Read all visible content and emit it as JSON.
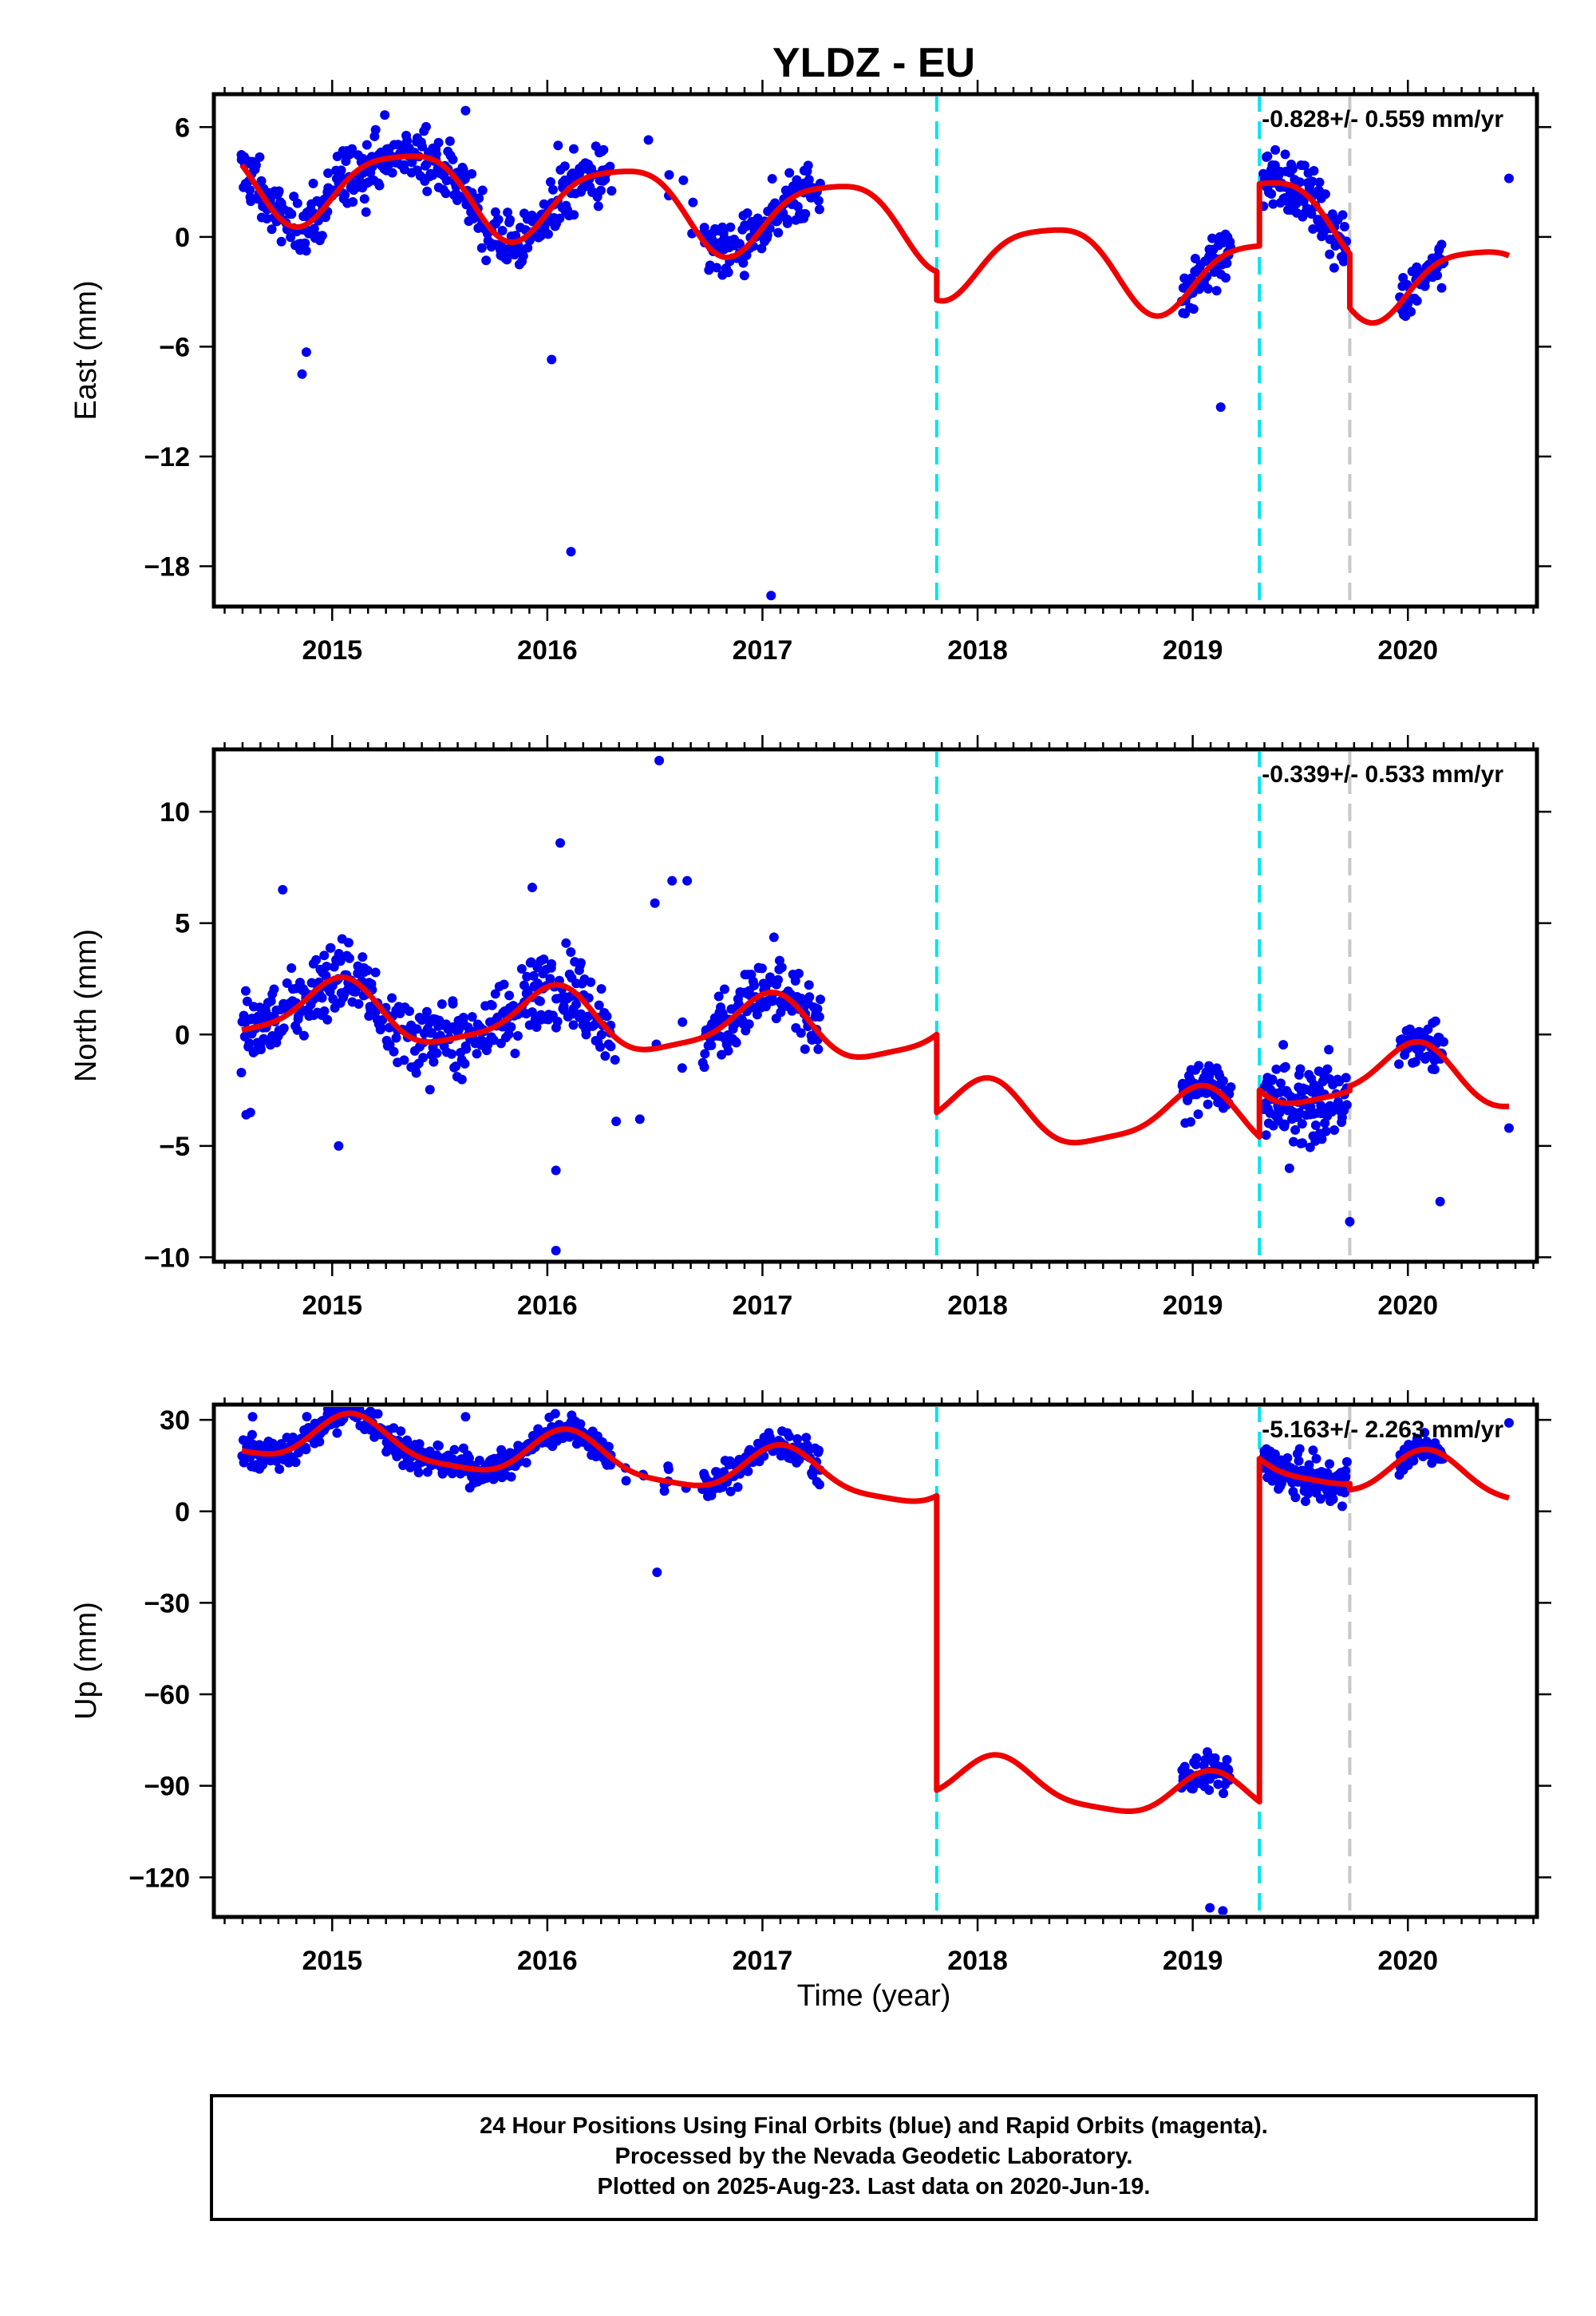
{
  "title": "YLDZ - EU",
  "xlabel": "Time (year)",
  "footer": {
    "line1": "24 Hour Positions Using Final Orbits (blue) and Rapid Orbits (magenta).",
    "line2": "Processed by the Nevada Geodetic Laboratory.",
    "line3": "Plotted on 2025-Aug-23. Last data on 2020-Jun-19."
  },
  "colors": {
    "final_orbits": "#0000ee",
    "rapid_orbits": "#ee00ee",
    "model_fit": "#ee0000",
    "antenna_change": "#00e5ee",
    "other_event": "#c8c8c8"
  },
  "chart_data": [
    {
      "type": "scatter",
      "panel": "east",
      "ylabel": "East (mm)",
      "rate_text": "-0.828+/- 0.559 mm/yr",
      "xlim": [
        2014.45,
        2020.6
      ],
      "ylim": [
        -20.2,
        7.8
      ],
      "xticks": [
        2015,
        2016,
        2017,
        2018,
        2019,
        2020
      ],
      "yticks": [
        6,
        0,
        -6,
        -12,
        -18
      ],
      "ytick_labels": [
        "6",
        "0",
        "−6",
        "−12",
        "−18"
      ],
      "grid": false,
      "legend": "none",
      "vlines": [
        {
          "x": 2017.81,
          "color": "cyan"
        },
        {
          "x": 2019.31,
          "color": "cyan"
        },
        {
          "x": 2019.73,
          "color": "gray"
        }
      ],
      "model": {
        "segments": [
          {
            "x0": 2014.58,
            "x1": 2017.81,
            "offset": 1.55
          },
          {
            "x0": 2017.81,
            "x1": 2019.31,
            "offset": 0.0
          },
          {
            "x0": 2019.31,
            "x1": 2019.73,
            "offset": 3.4
          },
          {
            "x0": 2019.73,
            "x1": 2020.47,
            "offset": 0.45
          }
        ],
        "base": -0.22,
        "rate": -0.828,
        "annual_sin": 1.8,
        "annual_cos": -1.15,
        "semi_sin": 0.35,
        "semi_cos": 0.3
      },
      "points_by_segment": [
        {
          "x0": 2014.58,
          "x1": 2017.27,
          "noise": 1.5,
          "gaps": [
            [
              2016.3,
              2016.72
            ]
          ],
          "step": 0.006
        },
        {
          "x0": 2018.95,
          "x1": 2019.18,
          "noise": 1.3,
          "step": 0.005
        },
        {
          "x0": 2019.33,
          "x1": 2019.72,
          "noise": 1.5,
          "step": 0.005
        },
        {
          "x0": 2019.96,
          "x1": 2020.17,
          "noise": 1.1,
          "step": 0.005
        }
      ],
      "outliers": [
        [
          2014.86,
          -7.5
        ],
        [
          2014.88,
          -6.3
        ],
        [
          2016.02,
          -6.7
        ],
        [
          2016.11,
          -17.2
        ],
        [
          2017.04,
          -19.6
        ],
        [
          2020.47,
          3.2
        ],
        [
          2015.05,
          4.7
        ],
        [
          2015.62,
          6.9
        ],
        [
          2016.05,
          5.0
        ],
        [
          2016.47,
          5.3
        ],
        [
          2019.36,
          3.5
        ],
        [
          2019.52,
          3.9
        ],
        [
          2019.13,
          -9.3
        ]
      ]
    },
    {
      "type": "scatter",
      "panel": "north",
      "ylabel": "North (mm)",
      "rate_text": "-0.339+/- 0.533 mm/yr",
      "xlim": [
        2014.45,
        2020.6
      ],
      "ylim": [
        -10.2,
        12.8
      ],
      "xticks": [
        2015,
        2016,
        2017,
        2018,
        2019,
        2020
      ],
      "yticks": [
        10,
        5,
        0,
        -5,
        -10
      ],
      "ytick_labels": [
        "10",
        "5",
        "0",
        "−5",
        "−10"
      ],
      "grid": false,
      "legend": "none",
      "vlines": [
        {
          "x": 2017.81,
          "color": "cyan"
        },
        {
          "x": 2019.31,
          "color": "cyan"
        },
        {
          "x": 2019.73,
          "color": "gray"
        }
      ],
      "model": {
        "segments": [
          {
            "x0": 2014.58,
            "x1": 2017.81,
            "offset": 0.0
          },
          {
            "x0": 2017.81,
            "x1": 2019.31,
            "offset": -3.5
          },
          {
            "x0": 2019.31,
            "x1": 2019.73,
            "offset": -1.4
          },
          {
            "x0": 2019.73,
            "x1": 2020.47,
            "offset": -1.2
          }
        ],
        "base": 0.3,
        "rate": -0.339,
        "annual_sin": 0.2,
        "annual_cos": 1.3,
        "semi_sin": 0.25,
        "semi_cos": 0.2
      },
      "points_by_segment": [
        {
          "x0": 2014.58,
          "x1": 2017.27,
          "noise": 1.5,
          "gaps": [
            [
              2016.3,
              2016.72
            ]
          ],
          "step": 0.006
        },
        {
          "x0": 2018.95,
          "x1": 2019.18,
          "noise": 1.1,
          "step": 0.005
        },
        {
          "x0": 2019.33,
          "x1": 2019.72,
          "noise": 1.7,
          "step": 0.005
        },
        {
          "x0": 2019.96,
          "x1": 2020.17,
          "noise": 1.1,
          "step": 0.005
        }
      ],
      "outliers": [
        [
          2014.6,
          -3.6
        ],
        [
          2014.62,
          -3.5
        ],
        [
          2015.03,
          -5.0
        ],
        [
          2016.04,
          -6.1
        ],
        [
          2016.04,
          -9.7
        ],
        [
          2016.06,
          8.6
        ],
        [
          2016.52,
          12.3
        ],
        [
          2016.5,
          5.9
        ],
        [
          2016.58,
          6.9
        ],
        [
          2016.65,
          6.9
        ],
        [
          2014.77,
          6.5
        ],
        [
          2015.93,
          6.6
        ],
        [
          2016.32,
          -3.9
        ],
        [
          2016.43,
          -3.8
        ],
        [
          2019.73,
          -8.4
        ],
        [
          2020.47,
          -4.2
        ],
        [
          2020.15,
          -7.5
        ]
      ]
    },
    {
      "type": "scatter",
      "panel": "up",
      "ylabel": "Up (mm)",
      "rate_text": "-5.163+/- 2.263 mm/yr",
      "xlim": [
        2014.45,
        2020.6
      ],
      "ylim": [
        -133,
        35
      ],
      "xticks": [
        2015,
        2016,
        2017,
        2018,
        2019,
        2020
      ],
      "yticks": [
        30,
        0,
        -30,
        -60,
        -90,
        -120
      ],
      "ytick_labels": [
        "30",
        "0",
        "−30",
        "−60",
        "−90",
        "−120"
      ],
      "grid": false,
      "legend": "none",
      "vlines": [
        {
          "x": 2017.81,
          "color": "cyan"
        },
        {
          "x": 2019.31,
          "color": "cyan"
        },
        {
          "x": 2019.73,
          "color": "gray"
        }
      ],
      "model": {
        "segments": [
          {
            "x0": 2014.58,
            "x1": 2017.81,
            "offset": 0.0
          },
          {
            "x0": 2017.81,
            "x1": 2019.31,
            "offset": -96.5
          },
          {
            "x0": 2019.31,
            "x1": 2019.73,
            "offset": 16.0
          },
          {
            "x0": 2019.73,
            "x1": 2020.47,
            "offset": 14.0
          }
        ],
        "base": 13.0,
        "rate": -5.163,
        "annual_sin": 4.5,
        "annual_cos": 6.0,
        "semi_sin": 1.5,
        "semi_cos": 1.0
      },
      "points_by_segment": [
        {
          "x0": 2014.58,
          "x1": 2017.27,
          "noise": 4.8,
          "gaps": [
            [
              2016.3,
              2016.72
            ]
          ],
          "step": 0.006
        },
        {
          "x0": 2018.95,
          "x1": 2019.18,
          "noise": 5.5,
          "step": 0.005
        },
        {
          "x0": 2019.33,
          "x1": 2019.72,
          "noise": 6.0,
          "step": 0.005
        },
        {
          "x0": 2019.96,
          "x1": 2020.17,
          "noise": 4.0,
          "step": 0.005
        }
      ],
      "outliers": [
        [
          2020.47,
          29.0
        ],
        [
          2016.51,
          -20.0
        ],
        [
          2015.62,
          31.0
        ],
        [
          2014.63,
          31.0
        ],
        [
          2019.08,
          -130.0
        ],
        [
          2019.14,
          -131.0
        ]
      ]
    }
  ]
}
